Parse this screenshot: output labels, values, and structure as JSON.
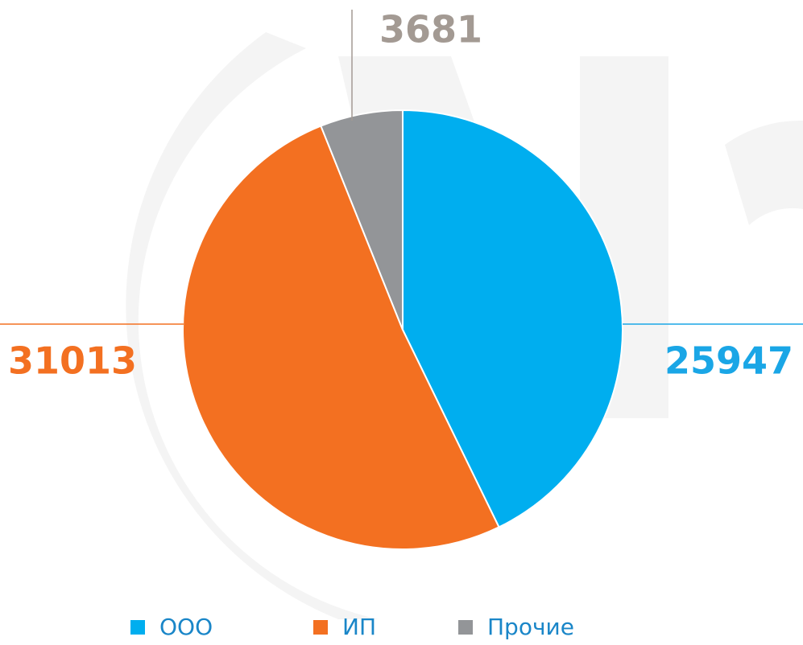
{
  "chart_data": {
    "type": "pie",
    "categories": [
      "ООО",
      "ИП",
      "Прочие"
    ],
    "values": [
      25947,
      31013,
      3681
    ],
    "colors": [
      "#00aeef",
      "#f37021",
      "#939598"
    ],
    "label_colors": [
      "#1aa6e6",
      "#f37021",
      "#a39a93"
    ]
  }
}
